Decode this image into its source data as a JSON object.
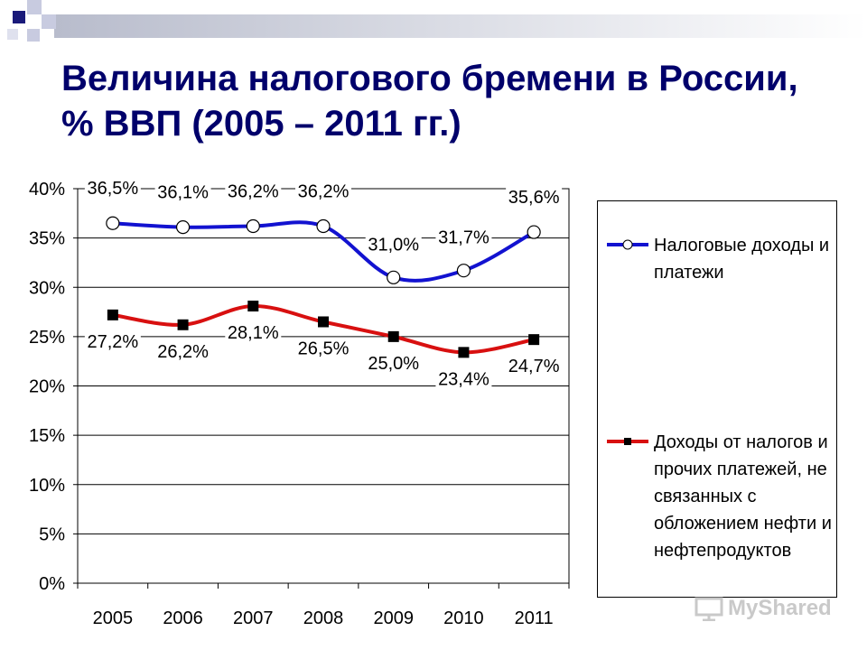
{
  "slide": {
    "title": "Величина налогового бремени в России, % ВВП (2005 – 2011 гг.)",
    "title_color": "#00006b",
    "watermark": "MyShared"
  },
  "chart_data": {
    "type": "line",
    "x": [
      "2005",
      "2006",
      "2007",
      "2008",
      "2009",
      "2010",
      "2011"
    ],
    "ylim": [
      0,
      40
    ],
    "yticks": [
      "0%",
      "5%",
      "10%",
      "15%",
      "20%",
      "25%",
      "30%",
      "35%",
      "40%"
    ],
    "grid": "horizontal",
    "legend_position": "right",
    "series": [
      {
        "name": "Налоговые доходы и платежи",
        "legend_lines": [
          "Налоговые доходы и",
          "платежи"
        ],
        "values": [
          36.5,
          36.1,
          36.2,
          36.2,
          31.0,
          31.7,
          35.6
        ],
        "labels": [
          "36,5%",
          "36,1%",
          "36,2%",
          "36,2%",
          "31,0%",
          "31,7%",
          "35,6%"
        ],
        "color": "#1212d0",
        "marker": "circle"
      },
      {
        "name": "Доходы от налогов и прочих платежей, не связанных с обложением нефти и нефтепродуктов",
        "legend_lines": [
          "Доходы от налогов и",
          "прочих платежей, не",
          "связанных с",
          "обложением нефти и",
          "нефтепродуктов"
        ],
        "values": [
          27.2,
          26.2,
          28.1,
          26.5,
          25.0,
          23.4,
          24.7
        ],
        "labels": [
          "27,2%",
          "26,2%",
          "28,1%",
          "26,5%",
          "25,0%",
          "23,4%",
          "24,7%"
        ],
        "color": "#d81010",
        "marker": "square"
      }
    ]
  }
}
